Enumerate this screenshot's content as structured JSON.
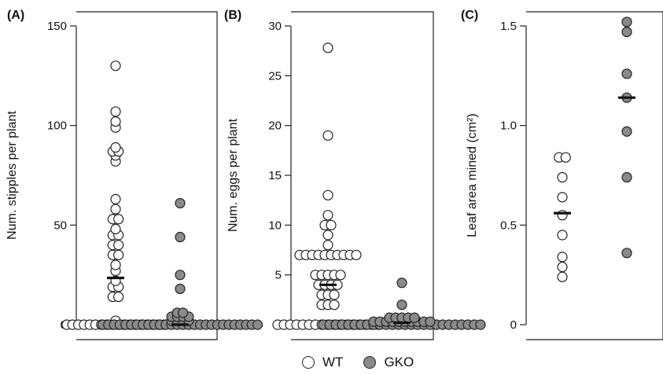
{
  "figure": {
    "legend": [
      {
        "label": "WT",
        "color": "#ffffff"
      },
      {
        "label": "GKO",
        "color": "#8a8a8a"
      }
    ]
  },
  "chart_data": [
    {
      "type": "scatter",
      "panel_label": "(A)",
      "ylabel": "Num. stipples per plant",
      "ylim": [
        0,
        150
      ],
      "yticks": [
        0,
        50,
        100,
        150
      ],
      "categories": [
        "WT",
        "GKO"
      ],
      "series": [
        {
          "name": "WT",
          "color": "#ffffff",
          "median": 23.5,
          "values": [
            0,
            0,
            0,
            0,
            0,
            0,
            0,
            0,
            0,
            0,
            0,
            0,
            0,
            0,
            0,
            0,
            0,
            0,
            2,
            14,
            14,
            19,
            19,
            22,
            27,
            30,
            35,
            35,
            40,
            40,
            45,
            45,
            48,
            53,
            53,
            58,
            63,
            82,
            85,
            87,
            87,
            89,
            99,
            102,
            107,
            130
          ]
        },
        {
          "name": "GKO",
          "color": "#8a8a8a",
          "median": 0,
          "values": [
            0,
            0,
            0,
            0,
            0,
            0,
            0,
            0,
            0,
            0,
            0,
            0,
            0,
            0,
            0,
            0,
            0,
            0,
            0,
            0,
            0,
            0,
            0,
            0,
            0,
            0,
            0,
            0,
            2,
            2,
            2,
            2,
            4,
            4,
            4,
            4,
            6,
            6,
            18,
            25,
            44,
            61
          ]
        }
      ]
    },
    {
      "type": "scatter",
      "panel_label": "(B)",
      "ylabel": "Num. eggs per plant",
      "ylim": [
        0,
        30
      ],
      "yticks": [
        0,
        5,
        10,
        15,
        20,
        25,
        30
      ],
      "categories": [
        "WT",
        "GKO"
      ],
      "series": [
        {
          "name": "WT",
          "color": "#ffffff",
          "median": 4,
          "values": [
            0,
            0,
            0,
            0,
            0,
            0,
            0,
            0,
            0,
            0,
            0,
            0,
            0,
            0,
            0,
            0,
            0,
            2,
            2,
            2,
            3,
            3,
            3,
            4,
            4,
            4,
            4,
            5,
            5,
            5,
            5,
            5,
            7,
            7,
            7,
            7,
            7,
            7,
            7,
            7,
            7,
            7,
            8,
            9,
            10,
            10,
            11,
            13,
            19,
            27.8
          ]
        },
        {
          "name": "GKO",
          "color": "#8a8a8a",
          "median": 0.2,
          "values": [
            0,
            0,
            0,
            0,
            0,
            0,
            0,
            0,
            0,
            0,
            0,
            0,
            0,
            0,
            0,
            0,
            0,
            0,
            0,
            0,
            0,
            0,
            0,
            0,
            0,
            0,
            0.3,
            0.3,
            0.3,
            0.3,
            0.3,
            0.3,
            0.3,
            0.3,
            0.3,
            0.3,
            0.7,
            0.7,
            0.7,
            0.7,
            0.7,
            2,
            4.2
          ]
        }
      ]
    },
    {
      "type": "scatter",
      "panel_label": "(C)",
      "ylabel": "Leaf area mined (cm²)",
      "ylim": [
        0,
        1.5
      ],
      "yticks": [
        0,
        0.5,
        1.0,
        1.5
      ],
      "ytick_labels": [
        "0",
        "0.5",
        "1.0",
        "1.5"
      ],
      "categories": [
        "WT",
        "GKO"
      ],
      "series": [
        {
          "name": "WT",
          "color": "#ffffff",
          "median": 0.56,
          "values": [
            0.24,
            0.29,
            0.34,
            0.45,
            0.55,
            0.64,
            0.74,
            0.84,
            0.84
          ]
        },
        {
          "name": "GKO",
          "color": "#8a8a8a",
          "median": 1.14,
          "values": [
            0.36,
            0.74,
            0.97,
            1.14,
            1.26,
            1.47,
            1.52
          ]
        }
      ]
    }
  ]
}
